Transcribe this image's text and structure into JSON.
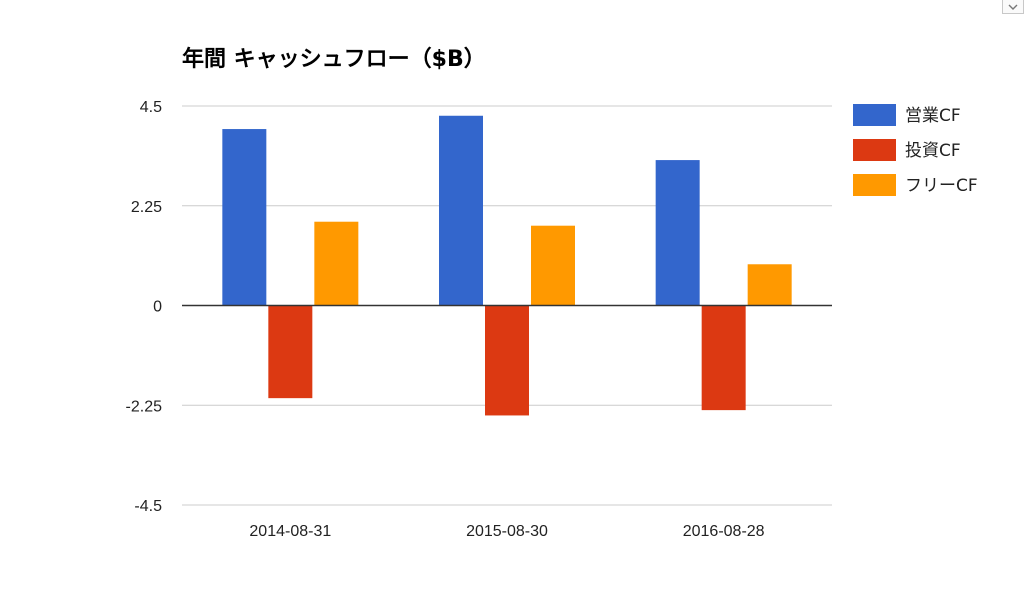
{
  "chart_data": {
    "type": "bar",
    "title": "年間 キャッシュフロー（$B）",
    "categories": [
      "2014-08-31",
      "2015-08-30",
      "2016-08-28"
    ],
    "series": [
      {
        "name": "営業CF",
        "color": "#3366cc",
        "values": [
          3.98,
          4.28,
          3.28
        ]
      },
      {
        "name": "投資CF",
        "color": "#dc3912",
        "values": [
          -2.09,
          -2.48,
          -2.36
        ]
      },
      {
        "name": "フリーCF",
        "color": "#ff9900",
        "values": [
          1.89,
          1.8,
          0.93
        ]
      }
    ],
    "ylim": [
      -4.5,
      4.5
    ],
    "yticks": [
      4.5,
      2.25,
      0,
      -2.25,
      -4.5
    ],
    "ytick_labels": [
      "4.5",
      "2.25",
      "0",
      "-2.25",
      "-4.5"
    ],
    "grid": true,
    "legend_position": "right"
  },
  "controls": {
    "menu_icon": "chevron-down-icon"
  }
}
